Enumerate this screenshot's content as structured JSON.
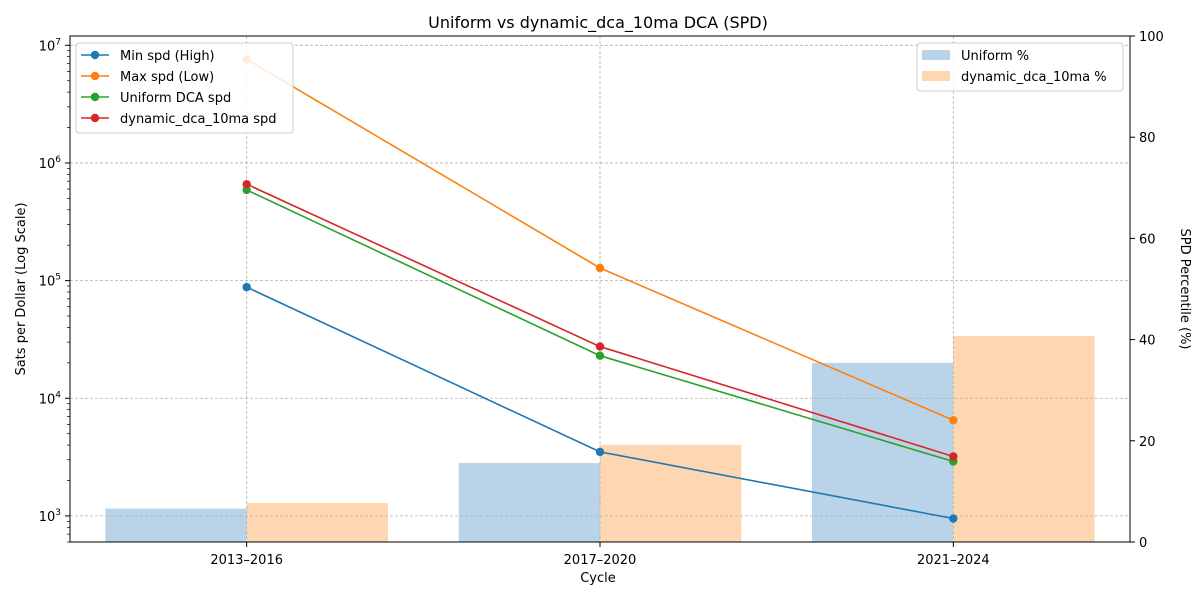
{
  "chart_data": {
    "type": "bar+line",
    "title": "Uniform vs dynamic_dca_10ma DCA (SPD)",
    "xlabel": "Cycle",
    "ylabel_left": "Sats per Dollar (Log Scale)",
    "ylabel_right": "SPD Percentile (%)",
    "categories": [
      "2013–2016",
      "2017–2020",
      "2021–2024"
    ],
    "left_axis": {
      "scale": "log",
      "ylim": [
        600,
        12000000
      ],
      "ticks": [
        {
          "value": 1000,
          "base": "10",
          "exp": "3"
        },
        {
          "value": 10000,
          "base": "10",
          "exp": "4"
        },
        {
          "value": 100000,
          "base": "10",
          "exp": "5"
        },
        {
          "value": 1000000,
          "base": "10",
          "exp": "6"
        },
        {
          "value": 10000000,
          "base": "10",
          "exp": "7"
        }
      ]
    },
    "right_axis": {
      "scale": "linear",
      "ylim": [
        0,
        100
      ],
      "ticks": [
        "0",
        "20",
        "40",
        "60",
        "80",
        "100"
      ]
    },
    "grid": true,
    "bar_series": [
      {
        "name": "Uniform %",
        "color": "#b9d4e8",
        "values": [
          6.6,
          15.6,
          35.4
        ]
      },
      {
        "name": "dynamic_dca_10ma %",
        "color": "#fed6b1",
        "values": [
          7.7,
          19.2,
          40.7
        ]
      }
    ],
    "line_series": [
      {
        "name": "Min spd (High)",
        "color": "#1f77b4",
        "values": [
          88000,
          3500,
          950
        ]
      },
      {
        "name": "Max spd (Low)",
        "color": "#ff7f0e",
        "values": [
          7600000,
          128000,
          6500
        ]
      },
      {
        "name": "Uniform DCA spd",
        "color": "#2ca02c",
        "values": [
          590000,
          23000,
          2900
        ]
      },
      {
        "name": "dynamic_dca_10ma spd",
        "color": "#d62728",
        "values": [
          660000,
          27500,
          3200
        ]
      }
    ],
    "line_legend_position": "upper-left",
    "bar_legend_position": "upper-right"
  }
}
